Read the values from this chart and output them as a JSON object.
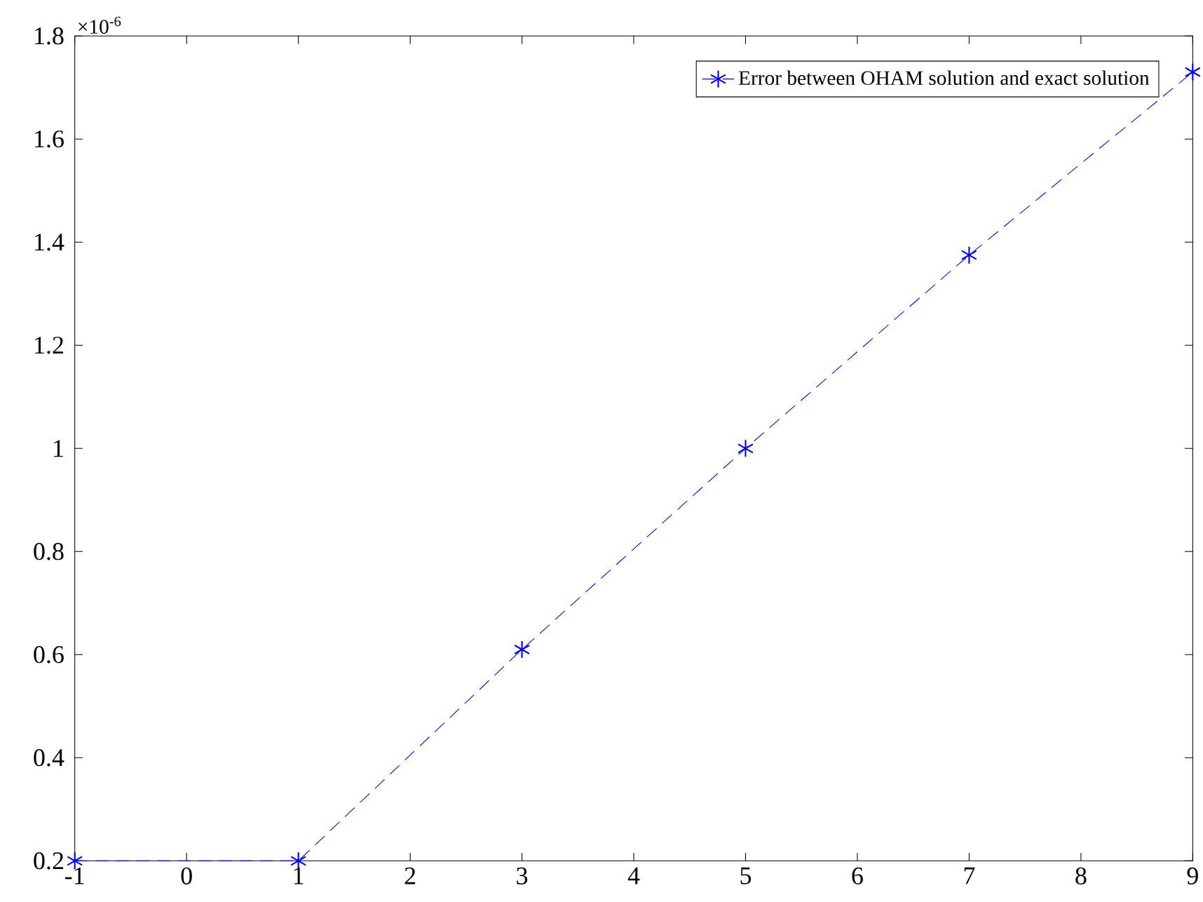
{
  "chart_data": {
    "type": "line",
    "x": [
      -1,
      1,
      3,
      5,
      7,
      9
    ],
    "series": [
      {
        "name": "Error between OHAM solution and exact solution",
        "color": "#0000ff",
        "values": [
          0.2,
          0.2,
          0.61,
          1.0,
          1.375,
          1.73
        ]
      }
    ],
    "xlim": [
      -1,
      9
    ],
    "ylim": [
      0.2,
      1.8
    ],
    "xticks": [
      -1,
      0,
      1,
      2,
      3,
      4,
      5,
      6,
      7,
      8,
      9
    ],
    "yticks": [
      0.2,
      0.4,
      0.6,
      0.8,
      1,
      1.2,
      1.4,
      1.6,
      1.8
    ],
    "annotations": [
      "×10$^{-6}$"
    ],
    "legend": "top right",
    "grid": false,
    "marker": "cross",
    "line_style": "dashed"
  }
}
